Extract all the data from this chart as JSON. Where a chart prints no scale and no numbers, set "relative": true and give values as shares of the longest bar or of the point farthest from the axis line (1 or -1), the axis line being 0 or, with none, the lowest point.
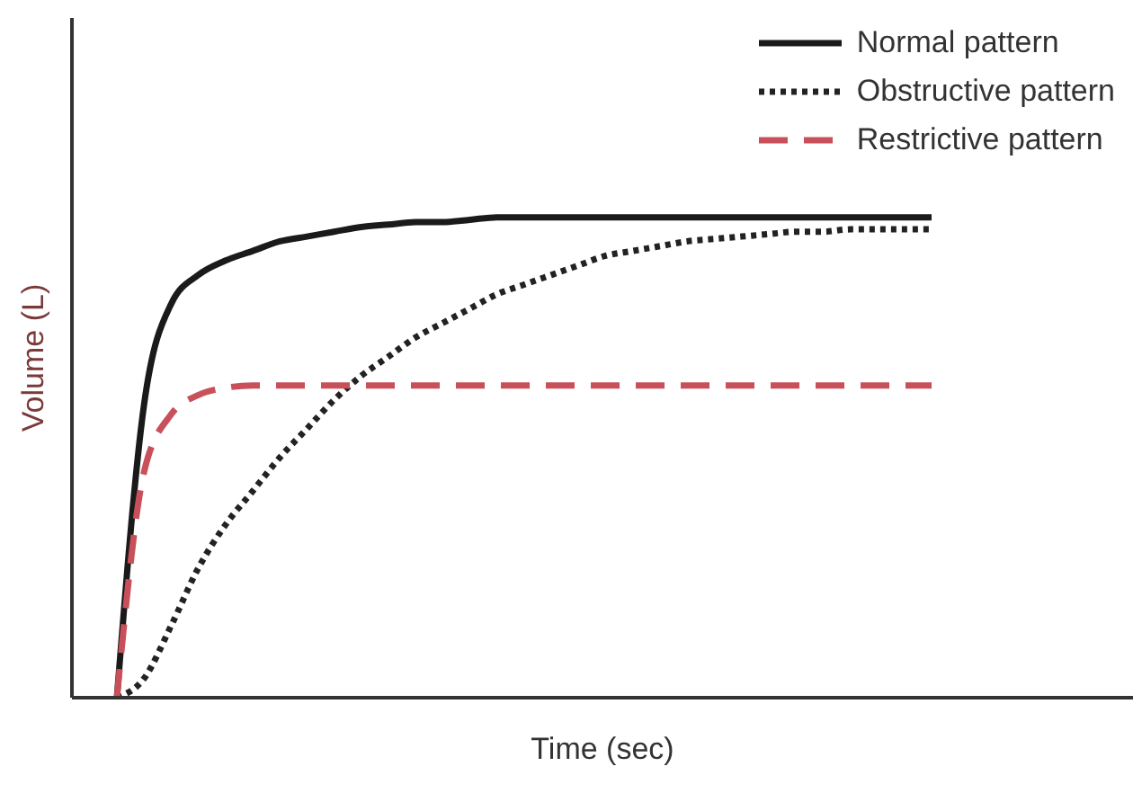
{
  "chart_data": {
    "type": "line",
    "relative": true,
    "xlabel": "Time (sec)",
    "ylabel": "Volume (L)",
    "legend": "top right",
    "marker": "none",
    "categories": [
      null,
      null,
      null,
      null,
      null,
      null,
      null,
      null,
      null,
      null,
      null,
      null,
      null,
      null,
      null,
      null,
      null,
      null,
      null,
      null,
      null,
      null,
      null,
      null,
      null,
      null,
      null,
      null,
      null,
      null,
      null
    ],
    "series": [
      {
        "name": "Normal pattern",
        "color": "#1a1a1a",
        "line_style": "solid",
        "values": [
          0,
          0.61,
          0.82,
          0.88,
          0.91,
          0.93,
          0.95,
          0.96,
          0.97,
          0.98,
          0.985,
          0.99,
          0.99,
          0.995,
          1,
          1,
          1,
          1,
          1,
          1,
          1,
          1,
          1,
          1,
          1,
          1,
          1,
          1,
          1,
          1,
          1
        ]
      },
      {
        "name": "Obstructive pattern",
        "color": "#222222",
        "line_style": "dotted",
        "values": [
          0,
          0.04,
          0.15,
          0.27,
          0.36,
          0.43,
          0.5,
          0.56,
          0.62,
          0.67,
          0.71,
          0.75,
          0.78,
          0.81,
          0.84,
          0.86,
          0.88,
          0.9,
          0.92,
          0.93,
          0.94,
          0.95,
          0.955,
          0.96,
          0.965,
          0.97,
          0.97,
          0.975,
          0.975,
          0.975,
          0.975
        ]
      },
      {
        "name": "Restrictive pattern",
        "color": "#c8505a",
        "line_style": "dashed",
        "values": [
          0,
          0.47,
          0.59,
          0.63,
          0.645,
          0.65,
          0.65,
          0.65,
          0.65,
          0.65,
          0.65,
          0.65,
          0.65,
          0.65,
          0.65,
          0.65,
          0.65,
          0.65,
          0.65,
          0.65,
          0.65,
          0.65,
          0.65,
          0.65,
          0.65,
          0.65,
          0.65,
          0.65,
          0.65,
          0.65,
          0.65
        ]
      }
    ]
  }
}
